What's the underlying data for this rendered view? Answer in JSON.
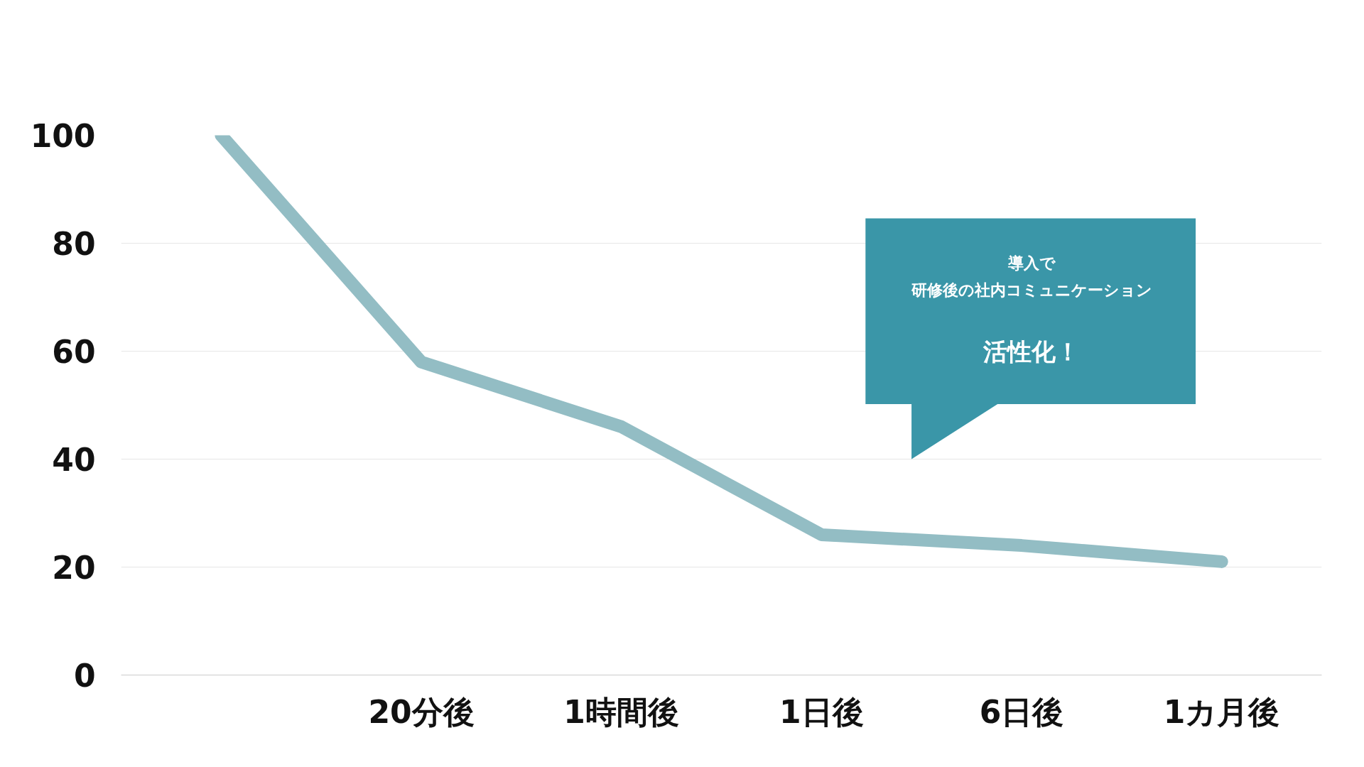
{
  "chart_data": {
    "type": "line",
    "categories": [
      null,
      "20分後",
      "1時間後",
      "1日後",
      "6日後",
      "1カ月後"
    ],
    "series": [
      {
        "color": "#93bdc4",
        "values": [
          100,
          58,
          46,
          26,
          24,
          21
        ]
      }
    ],
    "ylim": [
      0,
      100
    ],
    "yticks": [
      0,
      20,
      40,
      60,
      80,
      100
    ],
    "grid": "y",
    "marker": "none",
    "line_style": "solid",
    "annotations": [
      "導入で",
      "研修後の社内コミュニケーション",
      "活性化！"
    ]
  }
}
